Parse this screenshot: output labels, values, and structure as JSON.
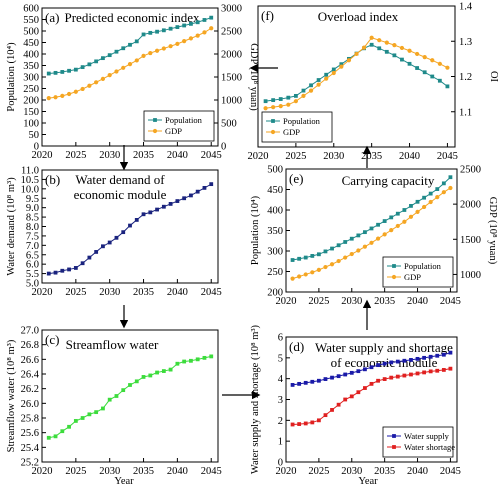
{
  "figure": {
    "x_axis_label": "Year"
  },
  "chart_data": [
    {
      "id": "a",
      "type": "line",
      "panel_label": "(a)",
      "title": "Predicted economic index",
      "xlabel": "",
      "ylabel": "Population (10⁴)",
      "y2label": "GDP (10⁸ yuan)",
      "xlim": [
        2020,
        2046
      ],
      "ylim": [
        0,
        600
      ],
      "y2lim": [
        0,
        3000
      ],
      "xticks": [
        "2020",
        "2025",
        "2030",
        "2035",
        "2040",
        "2045"
      ],
      "yticks": [
        "0",
        "50",
        "100",
        "150",
        "200",
        "250",
        "300",
        "350",
        "400",
        "450",
        "500",
        "550",
        "600"
      ],
      "y2ticks": [
        "0",
        "500",
        "1000",
        "1500",
        "2000",
        "2500",
        "3000"
      ],
      "x": [
        2021,
        2022,
        2023,
        2024,
        2025,
        2026,
        2027,
        2028,
        2029,
        2030,
        2031,
        2032,
        2033,
        2034,
        2035,
        2036,
        2037,
        2038,
        2039,
        2040,
        2041,
        2042,
        2043,
        2044,
        2045
      ],
      "series": [
        {
          "name": "Population",
          "axis": "left",
          "color": "#1f8a8a",
          "marker": "square",
          "values": [
            315,
            318,
            322,
            327,
            332,
            343,
            355,
            368,
            382,
            395,
            410,
            425,
            440,
            455,
            485,
            492,
            497,
            503,
            510,
            517,
            524,
            531,
            538,
            548,
            558
          ]
        },
        {
          "name": "GDP",
          "axis": "right",
          "color": "#f5a623",
          "marker": "circle",
          "values": [
            1040,
            1060,
            1090,
            1130,
            1180,
            1240,
            1310,
            1385,
            1460,
            1540,
            1620,
            1700,
            1780,
            1860,
            1960,
            2020,
            2070,
            2120,
            2170,
            2220,
            2280,
            2340,
            2400,
            2470,
            2560
          ]
        }
      ],
      "legend": "bottom-right"
    },
    {
      "id": "b",
      "type": "line",
      "panel_label": "(b)",
      "title": "Water demand of",
      "title_line2": "economic module",
      "xlabel": "",
      "ylabel": "Water demand (10⁸ m³)",
      "xlim": [
        2020,
        2046
      ],
      "ylim": [
        5,
        11
      ],
      "xticks": [
        "2020",
        "2025",
        "2030",
        "2035",
        "2040",
        "2045"
      ],
      "yticks": [
        "5.0",
        "5.5",
        "6.0",
        "6.5",
        "7.0",
        "7.5",
        "8.0",
        "8.5",
        "9.0",
        "9.5",
        "10.0",
        "10.5",
        "11.0"
      ],
      "x": [
        2021,
        2022,
        2023,
        2024,
        2025,
        2026,
        2027,
        2028,
        2029,
        2030,
        2031,
        2032,
        2033,
        2034,
        2035,
        2036,
        2037,
        2038,
        2039,
        2040,
        2041,
        2042,
        2043,
        2044,
        2045
      ],
      "series": [
        {
          "name": "",
          "axis": "left",
          "color": "#1a237e",
          "marker": "square",
          "values": [
            5.5,
            5.55,
            5.65,
            5.72,
            5.8,
            6.05,
            6.35,
            6.65,
            6.95,
            7.15,
            7.4,
            7.7,
            8.05,
            8.35,
            8.65,
            8.75,
            8.9,
            9.05,
            9.2,
            9.35,
            9.5,
            9.65,
            9.85,
            10.05,
            10.25
          ]
        }
      ]
    },
    {
      "id": "c",
      "type": "line",
      "panel_label": "(c)",
      "title": "Streamflow water",
      "xlabel": "Year",
      "ylabel": "Streamflow water (10⁸ m³)",
      "xlim": [
        2020,
        2046
      ],
      "ylim": [
        25.2,
        27.0
      ],
      "xticks": [
        "2020",
        "2025",
        "2030",
        "2035",
        "2040",
        "2045"
      ],
      "yticks": [
        "25.2",
        "25.4",
        "25.6",
        "25.8",
        "26.0",
        "26.2",
        "26.4",
        "26.6",
        "26.8",
        "27.0"
      ],
      "x": [
        2021,
        2022,
        2023,
        2024,
        2025,
        2026,
        2027,
        2028,
        2029,
        2030,
        2031,
        2032,
        2033,
        2034,
        2035,
        2036,
        2037,
        2038,
        2039,
        2040,
        2041,
        2042,
        2043,
        2044,
        2045
      ],
      "series": [
        {
          "name": "",
          "axis": "left",
          "color": "#3cdc3c",
          "marker": "square",
          "values": [
            25.53,
            25.55,
            25.62,
            25.68,
            25.76,
            25.8,
            25.85,
            25.88,
            25.93,
            26.05,
            26.1,
            26.18,
            26.25,
            26.3,
            26.36,
            26.38,
            26.42,
            26.44,
            26.46,
            26.54,
            26.57,
            26.58,
            26.6,
            26.62,
            26.64
          ]
        }
      ]
    },
    {
      "id": "d",
      "type": "line",
      "panel_label": "(d)",
      "title": "Water supply and shortage",
      "title_line2": "of economic module",
      "xlabel": "Year",
      "ylabel": "Water supply and shortage (10⁸ m³)",
      "xlim": [
        2020,
        2046
      ],
      "ylim": [
        0,
        6
      ],
      "xticks": [
        "2020",
        "2025",
        "2030",
        "2035",
        "2040",
        "2045"
      ],
      "yticks": [
        "0",
        "1",
        "2",
        "3",
        "4",
        "5",
        "6"
      ],
      "x": [
        2021,
        2022,
        2023,
        2024,
        2025,
        2026,
        2027,
        2028,
        2029,
        2030,
        2031,
        2032,
        2033,
        2034,
        2035,
        2036,
        2037,
        2038,
        2039,
        2040,
        2041,
        2042,
        2043,
        2044,
        2045
      ],
      "series": [
        {
          "name": "Water supply",
          "axis": "left",
          "color": "#1a1aa8",
          "marker": "square",
          "values": [
            3.7,
            3.75,
            3.8,
            3.85,
            3.9,
            3.98,
            4.05,
            4.12,
            4.2,
            4.28,
            4.36,
            4.45,
            4.55,
            4.65,
            4.72,
            4.78,
            4.82,
            4.86,
            4.9,
            4.95,
            5.0,
            5.05,
            5.1,
            5.15,
            5.25
          ]
        },
        {
          "name": "Water shortage",
          "axis": "left",
          "color": "#e02020",
          "marker": "square",
          "values": [
            1.8,
            1.82,
            1.85,
            1.9,
            2.0,
            2.25,
            2.5,
            2.75,
            3.0,
            3.15,
            3.35,
            3.55,
            3.75,
            3.9,
            3.98,
            4.05,
            4.1,
            4.15,
            4.2,
            4.25,
            4.3,
            4.35,
            4.38,
            4.42,
            4.48
          ]
        }
      ],
      "legend": "bottom-right"
    },
    {
      "id": "e",
      "type": "line",
      "panel_label": "(e)",
      "title": "Carrying capacity",
      "xlabel": "",
      "ylabel": "Population (10⁴)",
      "y2label": "GDP (10⁸ yuan)",
      "xlim": [
        2020,
        2046
      ],
      "ylim": [
        200,
        500
      ],
      "y2lim": [
        750,
        2500
      ],
      "xticks": [
        "2020",
        "2025",
        "2030",
        "2035",
        "2040",
        "2045"
      ],
      "yticks": [
        "200",
        "250",
        "300",
        "350",
        "400",
        "450",
        "500"
      ],
      "y2ticks": [
        "1000",
        "1500",
        "2000",
        "2500"
      ],
      "x": [
        2021,
        2022,
        2023,
        2024,
        2025,
        2026,
        2027,
        2028,
        2029,
        2030,
        2031,
        2032,
        2033,
        2034,
        2035,
        2036,
        2037,
        2038,
        2039,
        2040,
        2041,
        2042,
        2043,
        2044,
        2045
      ],
      "series": [
        {
          "name": "Population",
          "axis": "left",
          "color": "#1f8a8a",
          "marker": "square",
          "values": [
            278,
            281,
            284,
            288,
            292,
            299,
            306,
            314,
            322,
            330,
            338,
            346,
            355,
            364,
            373,
            382,
            391,
            400,
            410,
            420,
            430,
            440,
            451,
            465,
            480
          ]
        },
        {
          "name": "GDP",
          "axis": "right",
          "color": "#f5a623",
          "marker": "circle",
          "values": [
            940,
            970,
            1000,
            1030,
            1065,
            1105,
            1145,
            1190,
            1240,
            1290,
            1340,
            1395,
            1450,
            1510,
            1570,
            1630,
            1690,
            1750,
            1820,
            1890,
            1960,
            2030,
            2100,
            2170,
            2230
          ]
        }
      ],
      "legend": "bottom-right"
    },
    {
      "id": "f",
      "type": "line",
      "panel_label": "(f)",
      "title": "Overload index",
      "xlabel": "",
      "ylabel": "OI",
      "xlim": [
        2020,
        2046
      ],
      "ylim": [
        1.0,
        1.4
      ],
      "xticks": [
        "2020",
        "2025",
        "2030",
        "2035",
        "2040",
        "2045"
      ],
      "yticks": [
        "1.1",
        "1.2",
        "1.3",
        "1.4"
      ],
      "x": [
        2021,
        2022,
        2023,
        2024,
        2025,
        2026,
        2027,
        2028,
        2029,
        2030,
        2031,
        2032,
        2033,
        2034,
        2035,
        2036,
        2037,
        2038,
        2039,
        2040,
        2041,
        2042,
        2043,
        2044,
        2045
      ],
      "series": [
        {
          "name": "Population",
          "axis": "left",
          "color": "#1f8a8a",
          "marker": "square",
          "values": [
            1.13,
            1.133,
            1.136,
            1.14,
            1.145,
            1.16,
            1.175,
            1.19,
            1.205,
            1.22,
            1.235,
            1.25,
            1.265,
            1.28,
            1.29,
            1.28,
            1.27,
            1.26,
            1.248,
            1.236,
            1.224,
            1.212,
            1.2,
            1.188,
            1.172
          ]
        },
        {
          "name": "GDP",
          "axis": "left",
          "color": "#f5a623",
          "marker": "circle",
          "values": [
            1.11,
            1.113,
            1.116,
            1.12,
            1.13,
            1.145,
            1.16,
            1.177,
            1.194,
            1.21,
            1.228,
            1.246,
            1.264,
            1.282,
            1.31,
            1.303,
            1.296,
            1.289,
            1.281,
            1.273,
            1.264,
            1.255,
            1.246,
            1.236,
            1.225
          ]
        }
      ],
      "legend": "bottom-left"
    }
  ]
}
